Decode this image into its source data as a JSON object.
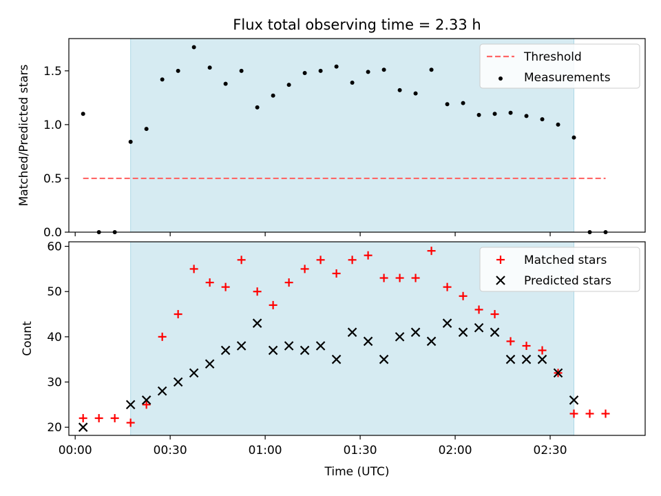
{
  "figure": {
    "title": "Flux total observing time = 2.33 h"
  },
  "chart_data": [
    {
      "type": "scatter",
      "panel": "top",
      "xlabel": "",
      "ylabel": "Matched/Predicted stars",
      "xlim_minutes": [
        -2,
        180
      ],
      "ylim": [
        0,
        1.8
      ],
      "yticks": [
        0.0,
        0.5,
        1.0,
        1.5
      ],
      "ytick_labels": [
        "0.0",
        "0.5",
        "1.0",
        "1.5"
      ],
      "shaded_span_minutes": [
        17.5,
        157.5
      ],
      "shaded_color": "#add8e6",
      "legend_position": "upper right",
      "series": [
        {
          "name": "Threshold",
          "kind": "dashed-line",
          "color": "#ff6666",
          "x_minutes": [
            2.5,
            167.5
          ],
          "y": [
            0.5,
            0.5
          ]
        },
        {
          "name": "Measurements",
          "kind": "dots",
          "color": "#000000",
          "x_minutes": [
            2.5,
            7.5,
            12.5,
            17.5,
            22.5,
            27.5,
            32.5,
            37.5,
            42.5,
            47.5,
            52.5,
            57.5,
            62.5,
            67.5,
            72.5,
            77.5,
            82.5,
            87.5,
            92.5,
            97.5,
            102.5,
            107.5,
            112.5,
            117.5,
            122.5,
            127.5,
            132.5,
            137.5,
            142.5,
            147.5,
            152.5,
            157.5,
            162.5,
            167.5
          ],
          "y": [
            1.1,
            0.0,
            0.0,
            0.84,
            0.96,
            1.42,
            1.5,
            1.72,
            1.53,
            1.38,
            1.5,
            1.16,
            1.27,
            1.37,
            1.48,
            1.5,
            1.54,
            1.39,
            1.49,
            1.51,
            1.32,
            1.29,
            1.51,
            1.19,
            1.2,
            1.09,
            1.1,
            1.11,
            1.08,
            1.05,
            1.0,
            0.88,
            0.0,
            0.0
          ]
        }
      ]
    },
    {
      "type": "scatter",
      "panel": "bottom",
      "xlabel": "Time (UTC)",
      "ylabel": "Count",
      "xlim_minutes": [
        -2,
        180
      ],
      "ylim": [
        18.2,
        61
      ],
      "xticks_minutes": [
        0,
        30,
        60,
        90,
        120,
        150
      ],
      "xtick_labels": [
        "00:00",
        "00:30",
        "01:00",
        "01:30",
        "02:00",
        "02:30"
      ],
      "yticks": [
        20,
        30,
        40,
        50,
        60
      ],
      "ytick_labels": [
        "20",
        "30",
        "40",
        "50",
        "60"
      ],
      "shaded_span_minutes": [
        17.5,
        157.5
      ],
      "shaded_color": "#add8e6",
      "legend_position": "upper right",
      "series": [
        {
          "name": "Matched stars",
          "kind": "plus",
          "color": "#ff0000",
          "x_minutes": [
            2.5,
            7.5,
            12.5,
            17.5,
            22.5,
            27.5,
            32.5,
            37.5,
            42.5,
            47.5,
            52.5,
            57.5,
            62.5,
            67.5,
            72.5,
            77.5,
            82.5,
            87.5,
            92.5,
            97.5,
            102.5,
            107.5,
            112.5,
            117.5,
            122.5,
            127.5,
            132.5,
            137.5,
            142.5,
            147.5,
            152.5,
            157.5,
            162.5,
            167.5
          ],
          "y": [
            22,
            22,
            22,
            21,
            25,
            40,
            45,
            55,
            52,
            51,
            57,
            50,
            47,
            52,
            55,
            57,
            54,
            57,
            58,
            53,
            53,
            53,
            59,
            51,
            49,
            46,
            45,
            39,
            38,
            37,
            32,
            23,
            23,
            23
          ]
        },
        {
          "name": "Predicted stars",
          "kind": "x",
          "color": "#000000",
          "x_minutes": [
            2.5,
            17.5,
            22.5,
            27.5,
            32.5,
            37.5,
            42.5,
            47.5,
            52.5,
            57.5,
            62.5,
            67.5,
            72.5,
            77.5,
            82.5,
            87.5,
            92.5,
            97.5,
            102.5,
            107.5,
            112.5,
            117.5,
            122.5,
            127.5,
            132.5,
            137.5,
            142.5,
            147.5,
            152.5,
            157.5
          ],
          "y": [
            20,
            25,
            26,
            28,
            30,
            32,
            34,
            37,
            38,
            43,
            37,
            38,
            37,
            38,
            35,
            41,
            39,
            35,
            40,
            41,
            39,
            43,
            41,
            42,
            41,
            35,
            35,
            35,
            32,
            26
          ]
        }
      ]
    }
  ]
}
